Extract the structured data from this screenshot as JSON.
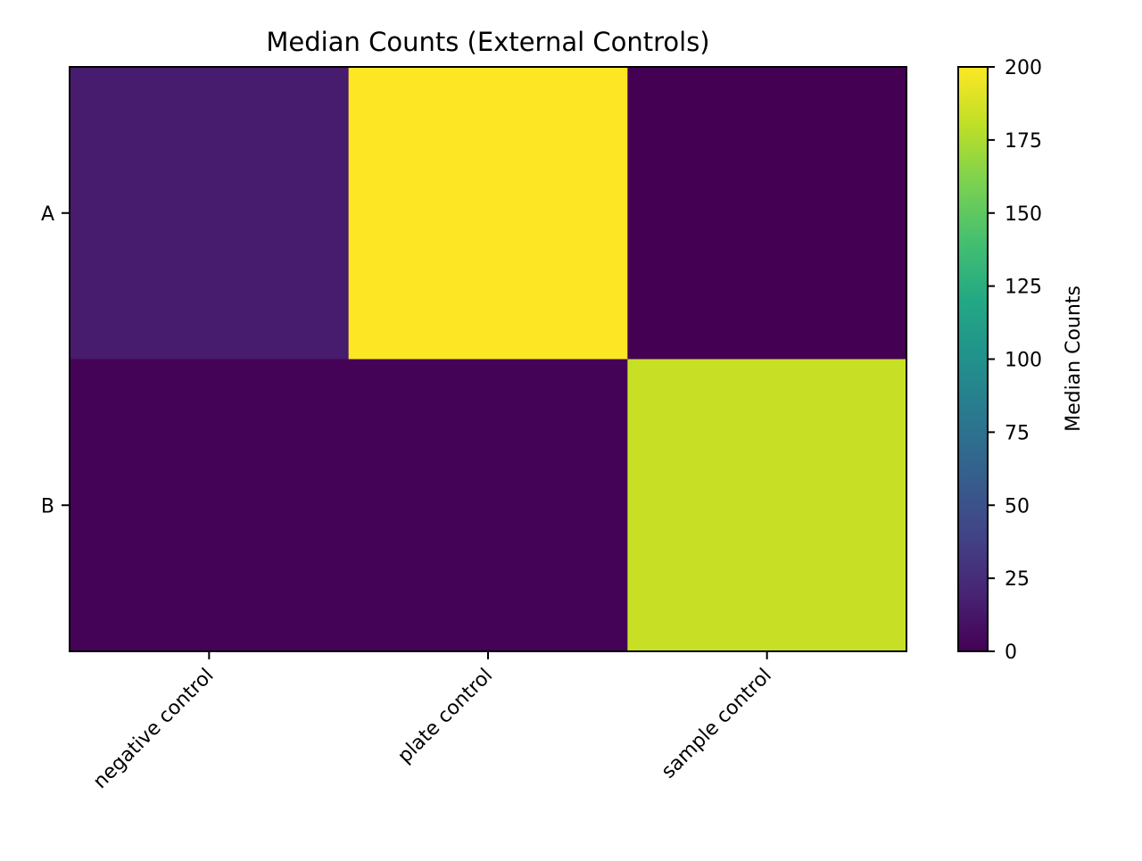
{
  "chart_data": {
    "type": "heatmap",
    "title": "Median Counts (External Controls)",
    "xlabel": "",
    "ylabel": "",
    "x_categories": [
      "negative control",
      "plate control",
      "sample control"
    ],
    "y_categories": [
      "A",
      "B"
    ],
    "values": [
      [
        15,
        200,
        0
      ],
      [
        1,
        1,
        183
      ]
    ],
    "colormap": "viridis",
    "colorbar": {
      "label": "Median Counts",
      "range": [
        0,
        200
      ],
      "ticks": [
        "0",
        "25",
        "50",
        "75",
        "100",
        "125",
        "150",
        "175",
        "200"
      ]
    },
    "grid": false
  }
}
